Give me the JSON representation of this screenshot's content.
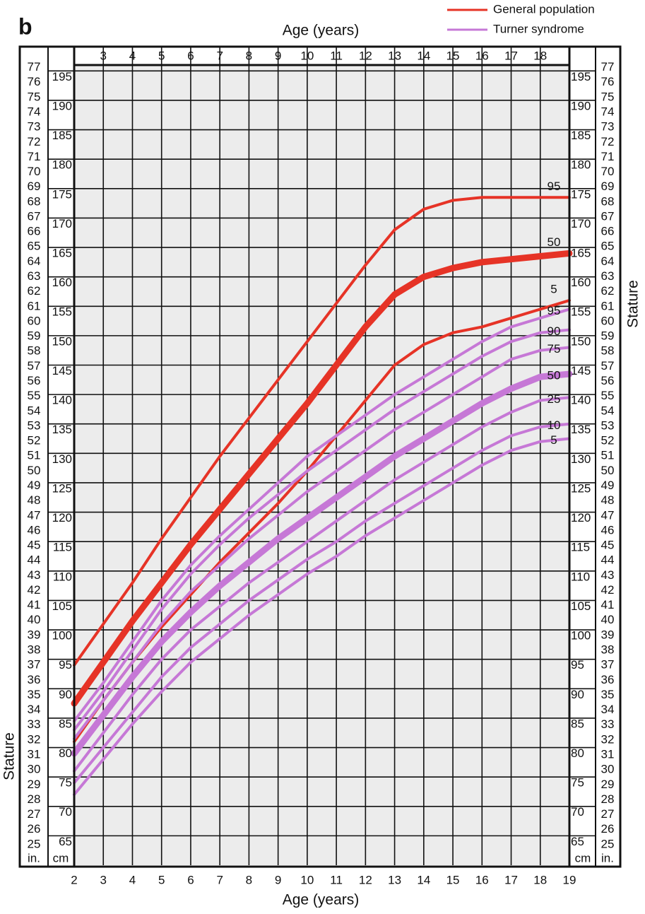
{
  "chart_data": {
    "type": "line",
    "panel_label": "b",
    "x_label": "Age (years)",
    "y_label": "Stature",
    "y_unit": "cm",
    "y2_unit": "in.",
    "x": [
      2,
      3,
      4,
      5,
      6,
      7,
      8,
      9,
      10,
      11,
      12,
      13,
      14,
      15,
      16,
      17,
      18,
      19
    ],
    "xlim": [
      2,
      19
    ],
    "xticks": [
      2,
      3,
      4,
      5,
      6,
      7,
      8,
      9,
      10,
      11,
      12,
      13,
      14,
      15,
      16,
      17,
      18,
      19
    ],
    "xticks_top": [
      3,
      4,
      5,
      6,
      7,
      8,
      9,
      10,
      11,
      12,
      13,
      14,
      15,
      16,
      17,
      18
    ],
    "ylim": [
      60,
      196
    ],
    "yticks": [
      65,
      70,
      75,
      80,
      85,
      90,
      95,
      100,
      105,
      110,
      115,
      120,
      125,
      130,
      135,
      140,
      145,
      150,
      155,
      160,
      165,
      170,
      175,
      180,
      185,
      190,
      195
    ],
    "y2lim": [
      23.62,
      77.17
    ],
    "y2ticks": [
      25,
      26,
      27,
      28,
      29,
      30,
      31,
      32,
      33,
      34,
      35,
      36,
      37,
      38,
      39,
      40,
      41,
      42,
      43,
      44,
      45,
      46,
      47,
      48,
      49,
      50,
      51,
      52,
      53,
      54,
      55,
      56,
      57,
      58,
      59,
      60,
      61,
      62,
      63,
      64,
      65,
      66,
      67,
      68,
      69,
      70,
      71,
      72,
      73,
      74,
      75,
      76,
      77
    ],
    "grid": true,
    "legend_position": "top-right",
    "series_groups": [
      {
        "name": "General population",
        "color": "#e63326",
        "series": [
          {
            "name": "95",
            "line_width": 4,
            "values": [
              94,
              101,
              108,
              115.5,
              122.5,
              129.5,
              136,
              142.5,
              149,
              155.5,
              162,
              168,
              171.5,
              173,
              173.5,
              173.5,
              173.5,
              173.5
            ]
          },
          {
            "name": "50",
            "line_width": 9,
            "values": [
              87.5,
              94.5,
              101.5,
              108,
              114.5,
              120.5,
              126.5,
              132.5,
              138.5,
              145,
              151.5,
              157,
              160,
              161.5,
              162.5,
              163,
              163.5,
              164
            ]
          },
          {
            "name": "5",
            "line_width": 4,
            "values": [
              81,
              88,
              94.5,
              100.5,
              106,
              111.5,
              116.5,
              121.5,
              127,
              133,
              139,
              145,
              148.5,
              150.5,
              151.5,
              153,
              154.5,
              156
            ]
          }
        ]
      },
      {
        "name": "Turner syndrome",
        "color": "#c678d6",
        "series": [
          {
            "name": "95",
            "line_width": 4,
            "values": [
              84.5,
              91,
              98,
              105,
              111,
              116,
              120.5,
              125,
              129.5,
              133,
              136.5,
              140,
              143,
              146,
              149,
              151.5,
              153,
              154.5
            ]
          },
          {
            "name": "90",
            "line_width": 4,
            "values": [
              83,
              89.5,
              96.5,
              103.5,
              109.5,
              114.5,
              119,
              123,
              127,
              130.5,
              134,
              137.5,
              140.5,
              143.5,
              146.5,
              149,
              150.5,
              151
            ]
          },
          {
            "name": "75",
            "line_width": 4,
            "values": [
              81.5,
              88,
              94.5,
              101,
              106.5,
              111,
              115.5,
              119.5,
              123.5,
              127,
              130.5,
              134,
              137,
              140,
              143,
              146,
              147.5,
              148
            ]
          },
          {
            "name": "50",
            "line_width": 9,
            "values": [
              79,
              85.5,
              92,
              98,
              103,
              107.5,
              111.5,
              115.5,
              119,
              122.5,
              126,
              129.5,
              132.5,
              135.5,
              138.5,
              141,
              143,
              143.5
            ]
          },
          {
            "name": "25",
            "line_width": 4,
            "values": [
              76,
              82.5,
              89,
              95,
              100,
              104,
              108,
              111.5,
              115,
              118.5,
              122,
              125.5,
              128.5,
              131.5,
              134.5,
              137,
              139,
              139.5
            ]
          },
          {
            "name": "10",
            "line_width": 4,
            "values": [
              74,
              80,
              86,
              92,
              97,
              101,
              105,
              108.5,
              112,
              115,
              118.5,
              121.5,
              124.5,
              127.5,
              130.5,
              133,
              134.5,
              135
            ]
          },
          {
            "name": "5",
            "line_width": 4,
            "values": [
              72,
              78,
              84,
              89.5,
              94.5,
              98.5,
              102.5,
              106,
              109.5,
              112.5,
              116,
              119,
              122,
              125,
              128,
              130.5,
              132,
              132.5
            ]
          }
        ]
      }
    ]
  }
}
